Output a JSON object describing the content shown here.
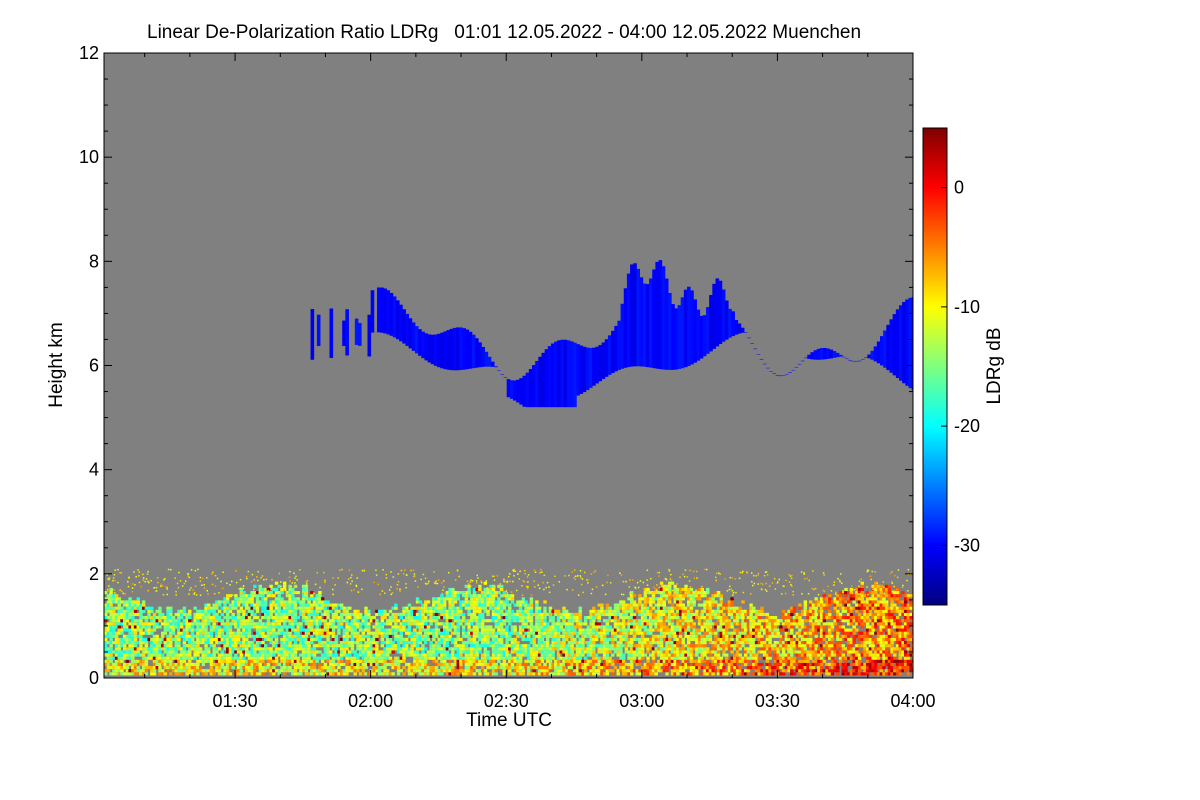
{
  "chart_data": {
    "type": "heatmap",
    "title": "Linear De-Polarization Ratio LDRg   01:01 12.05.2022 - 04:00 12.05.2022 Muenchen",
    "xlabel": "Time UTC",
    "ylabel": "Height km",
    "x_ticks": [
      "01:30",
      "02:00",
      "02:30",
      "03:00",
      "03:30",
      "04:00"
    ],
    "x_tick_minutes": [
      90,
      120,
      150,
      180,
      210,
      240
    ],
    "xlim_minutes": [
      61,
      240
    ],
    "y_ticks": [
      "0",
      "2",
      "4",
      "6",
      "8",
      "10",
      "12"
    ],
    "y_tick_values": [
      0,
      2,
      4,
      6,
      8,
      10,
      12
    ],
    "ylim": [
      0,
      12
    ],
    "background_color": "#808080",
    "colorbar": {
      "label": "LDRg dB",
      "range": [
        -35,
        5
      ],
      "ticks": [
        "0",
        "-10",
        "-20",
        "-30"
      ],
      "tick_values": [
        0,
        -10,
        -20,
        -30
      ],
      "colors": [
        "#00007f",
        "#0000ff",
        "#007fff",
        "#00ffff",
        "#7fff7f",
        "#ffff00",
        "#ff7f00",
        "#ff0000",
        "#7f0000"
      ]
    },
    "features": [
      {
        "name": "cloud layer",
        "height_range_km": [
          5.2,
          8.4
        ],
        "time_range_minutes": [
          106,
          240
        ],
        "value_db": -30
      },
      {
        "name": "boundary layer aerosol",
        "height_range_km": [
          0,
          1.7
        ],
        "time_range_minutes": [
          61,
          240
        ],
        "value_range_db": [
          -20,
          0
        ]
      }
    ]
  }
}
